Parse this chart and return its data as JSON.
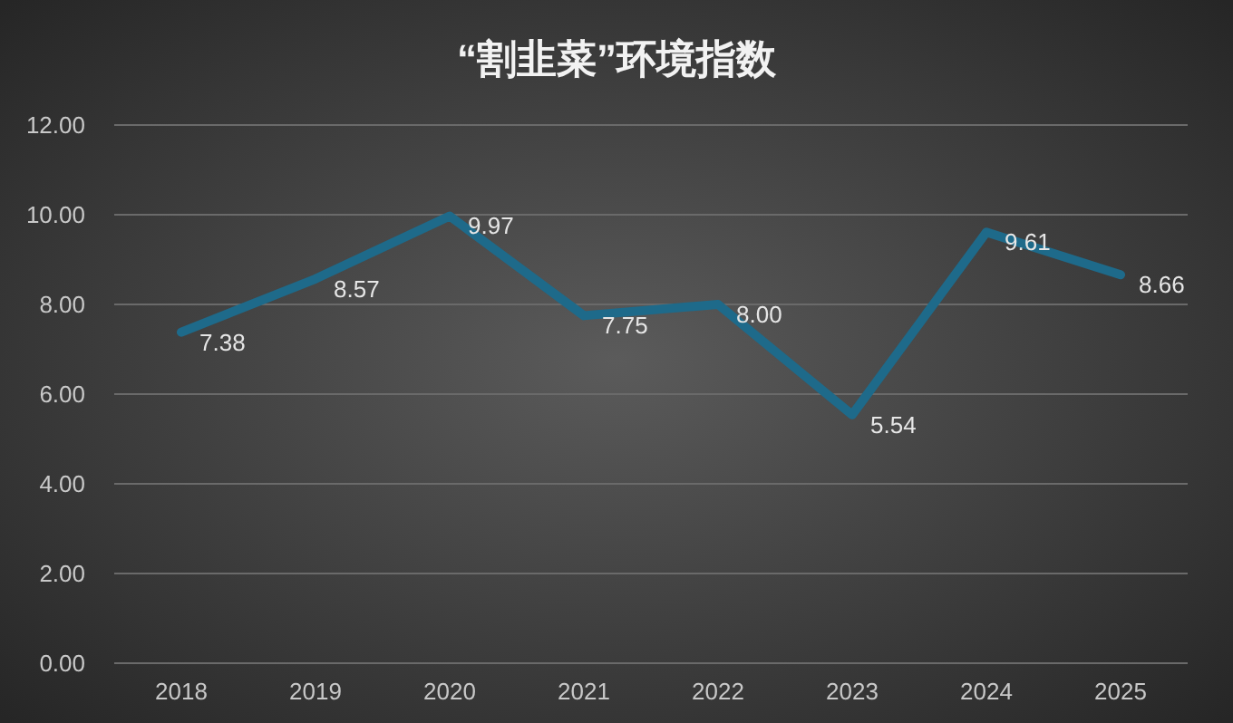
{
  "chart_data": {
    "type": "line",
    "title": "“割韭菜”环境指数",
    "categories": [
      "2018",
      "2019",
      "2020",
      "2021",
      "2022",
      "2023",
      "2024",
      "2025"
    ],
    "series": [
      {
        "color": "#1e6a8a",
        "values": [
          7.38,
          8.57,
          9.97,
          7.75,
          8.0,
          5.54,
          9.61,
          8.66
        ]
      }
    ],
    "value_labels": [
      "7.38",
      "8.57",
      "9.97",
      "7.75",
      "8.00",
      "5.54",
      "9.61",
      "8.66"
    ],
    "ylim": [
      0,
      12
    ],
    "yticks": [
      {
        "value": 0,
        "label": "0.00"
      },
      {
        "value": 2,
        "label": "2.00"
      },
      {
        "value": 4,
        "label": "4.00"
      },
      {
        "value": 6,
        "label": "6.00"
      },
      {
        "value": 8,
        "label": "8.00"
      },
      {
        "value": 10,
        "label": "10.00"
      },
      {
        "value": 12,
        "label": "12.00"
      }
    ],
    "grid": "y",
    "marker": "none",
    "line_style": "solid"
  }
}
